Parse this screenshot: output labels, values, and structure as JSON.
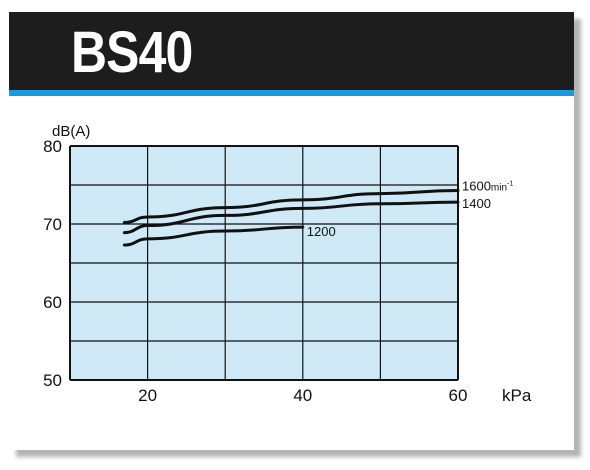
{
  "header": {
    "title": "BS40"
  },
  "colors": {
    "title_bar": "#1d1d1d",
    "accent": "#1a9ad8",
    "plot_bg": "#cfeaf6",
    "grid": "#111111"
  },
  "chart_data": {
    "type": "line",
    "title": "BS40",
    "xlabel": "kPa",
    "ylabel": "dB(A)",
    "xlim": [
      10,
      60
    ],
    "ylim": [
      50,
      80
    ],
    "x_ticks": [
      20,
      40,
      60
    ],
    "y_ticks": [
      50,
      60,
      70,
      80
    ],
    "grid": true,
    "series": [
      {
        "name": "1600min⁻¹",
        "label_main": "1600",
        "label_unit": "min",
        "label_sup": "-1",
        "x": [
          17,
          20,
          30,
          40,
          50,
          60
        ],
        "y": [
          70.2,
          70.9,
          72.1,
          73.1,
          73.9,
          74.3
        ]
      },
      {
        "name": "1400",
        "label_main": "1400",
        "label_unit": "",
        "label_sup": "",
        "x": [
          17,
          20,
          30,
          40,
          50,
          60
        ],
        "y": [
          68.9,
          69.8,
          71.1,
          72.0,
          72.6,
          72.8
        ]
      },
      {
        "name": "1200",
        "label_main": "1200",
        "label_unit": "",
        "label_sup": "",
        "x": [
          17,
          20,
          30,
          40
        ],
        "y": [
          67.3,
          68.1,
          69.1,
          69.6
        ]
      }
    ]
  }
}
